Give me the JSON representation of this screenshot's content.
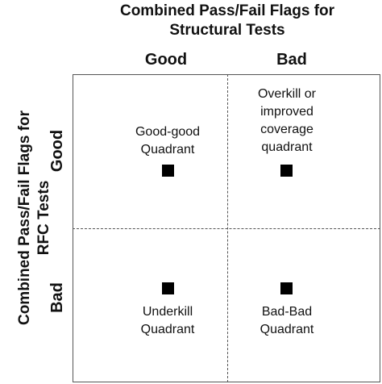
{
  "diagram": {
    "top_title": {
      "line1": "Combined Pass/Fail Flags for",
      "line2": "Structural Tests"
    },
    "left_title": {
      "line1": "Combined Pass/Fail Flags for",
      "line2": "RFC Tests"
    },
    "columns": {
      "good": "Good",
      "bad": "Bad"
    },
    "rows": {
      "good": "Good",
      "bad": "Bad"
    },
    "quadrants": {
      "good_good": {
        "line1": "Good-good",
        "line2": "Quadrant"
      },
      "good_bad": {
        "line1": "Overkill or",
        "line2": "improved",
        "line3": "coverage",
        "line4": "quadrant"
      },
      "bad_good": {
        "line1": "Underkill",
        "line2": "Quadrant"
      },
      "bad_bad": {
        "line1": "Bad-Bad",
        "line2": "Quadrant"
      }
    }
  }
}
